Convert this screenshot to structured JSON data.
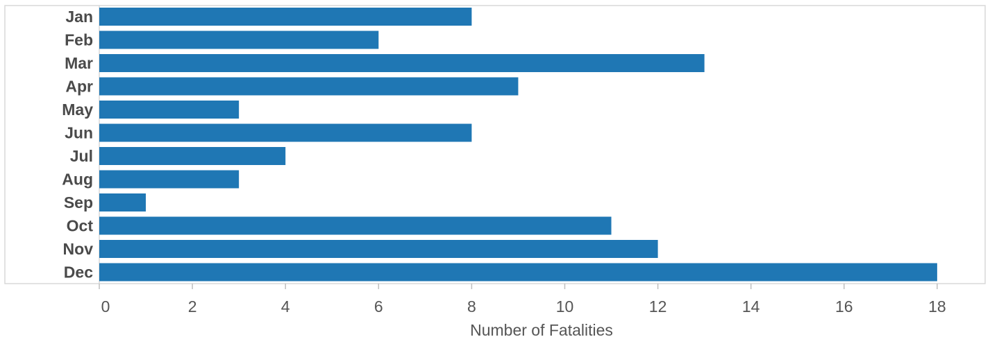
{
  "chart_data": {
    "type": "bar",
    "orientation": "horizontal",
    "categories": [
      "Jan",
      "Feb",
      "Mar",
      "Apr",
      "May",
      "Jun",
      "Jul",
      "Aug",
      "Sep",
      "Oct",
      "Nov",
      "Dec"
    ],
    "values": [
      8,
      6,
      13,
      9,
      3,
      8,
      4,
      3,
      1,
      11,
      12,
      18
    ],
    "xlabel": "Number of Fatalities",
    "ylabel": "",
    "xlim": [
      0,
      18.5
    ],
    "xticks": [
      0,
      2,
      4,
      6,
      8,
      10,
      12,
      14,
      16,
      18
    ],
    "grid": false,
    "legend": "none",
    "bar_color": "#1f77b4",
    "frame_color": "#d9d9d9"
  }
}
